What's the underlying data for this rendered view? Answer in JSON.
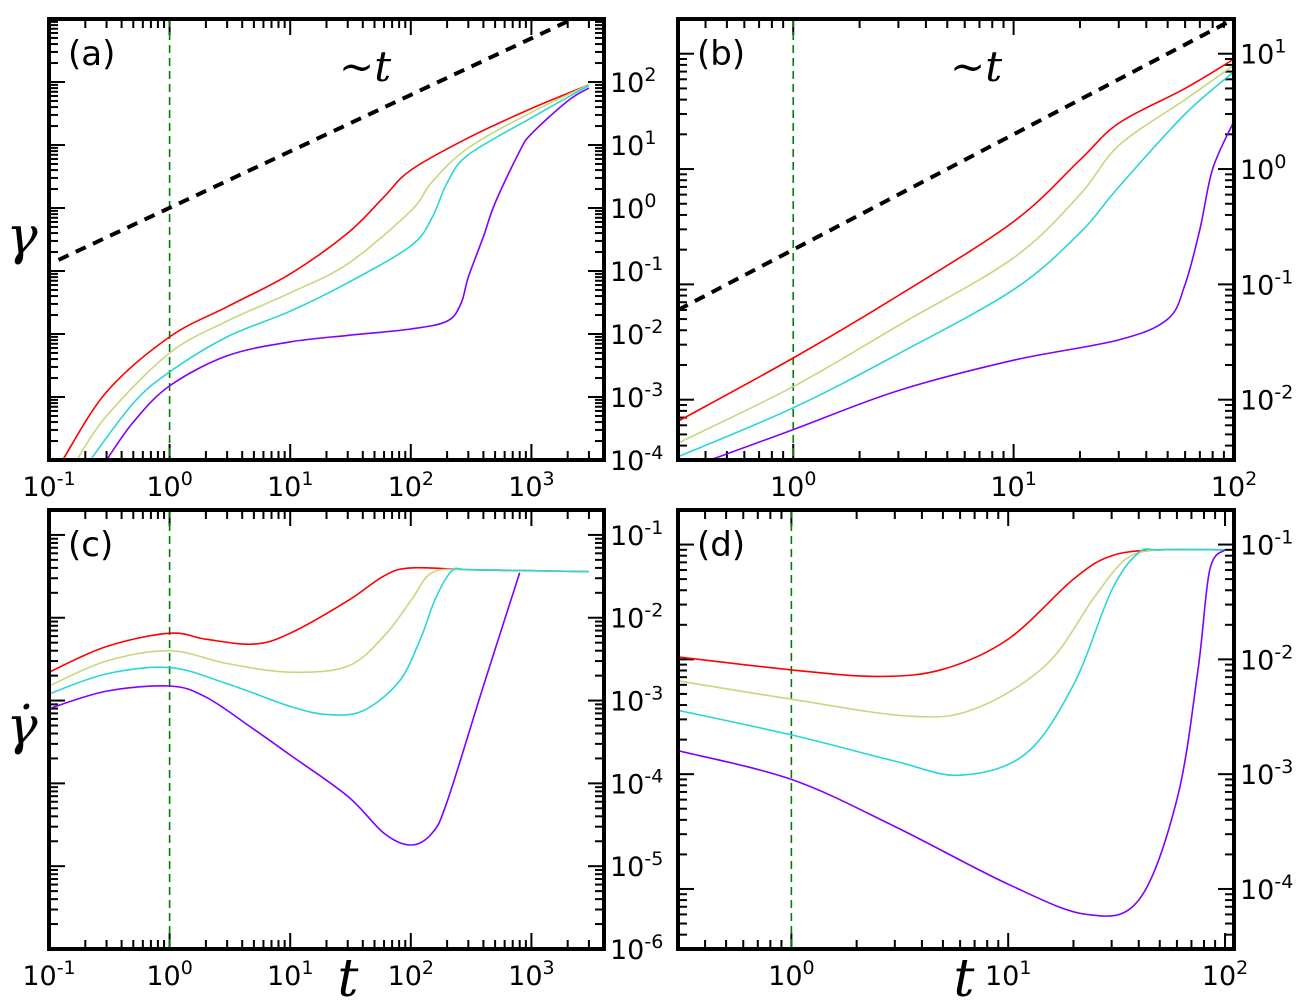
{
  "colors": {
    "series": [
      "#ff0000",
      "#c8d77e",
      "#2ad6d4",
      "#8000ff"
    ],
    "reference_line": "#000000",
    "vline": "#008000",
    "frame": "#000000"
  },
  "chart_data": [
    {
      "id": "a",
      "type": "line",
      "label": "(a)",
      "xscale": "log",
      "xlim": [
        0.1,
        4000
      ],
      "yscale": "log",
      "ylim": [
        0.0001,
        1000
      ],
      "x_tick_labels": [
        "10^-1",
        "10^0",
        "10^1",
        "10^2",
        "10^3"
      ],
      "y_tick_labels_right": [
        "10^-4",
        "10^-3",
        "10^-2",
        "10^-1",
        "10^0",
        "10^1",
        "10^2"
      ],
      "ylabel": "γ",
      "annotation": "~t",
      "vline_x": 1,
      "reference_line": {
        "label": "~t",
        "x": [
          0.12,
          2200
        ],
        "y": [
          0.15,
          1000
        ]
      },
      "series": [
        {
          "name": "red",
          "x": [
            0.13,
            0.3,
            1,
            3,
            10,
            30,
            60,
            100,
            300,
            1000,
            3000
          ],
          "y": [
            0.0001,
            0.0012,
            0.009,
            0.027,
            0.09,
            0.4,
            1.5,
            4,
            13,
            38,
            90
          ]
        },
        {
          "name": "yellow-green",
          "x": [
            0.17,
            0.3,
            1,
            3,
            10,
            30,
            100,
            150,
            300,
            1000,
            3000
          ],
          "y": [
            0.0001,
            0.0005,
            0.005,
            0.016,
            0.045,
            0.13,
            0.9,
            2.6,
            9,
            33,
            90
          ]
        },
        {
          "name": "cyan",
          "x": [
            0.22,
            0.5,
            1,
            3,
            10,
            30,
            100,
            150,
            200,
            300,
            1000,
            3000
          ],
          "y": [
            0.0001,
            0.0008,
            0.0025,
            0.009,
            0.023,
            0.065,
            0.25,
            0.7,
            2.5,
            7,
            27,
            88
          ]
        },
        {
          "name": "purple",
          "x": [
            0.3,
            0.5,
            1,
            3,
            10,
            30,
            100,
            200,
            260,
            300,
            400,
            500,
            800,
            1000,
            2000,
            3000
          ],
          "y": [
            0.0001,
            0.0004,
            0.0015,
            0.0045,
            0.0075,
            0.0095,
            0.012,
            0.016,
            0.03,
            0.08,
            0.35,
            1.2,
            8,
            15,
            50,
            80
          ]
        }
      ]
    },
    {
      "id": "b",
      "type": "line",
      "label": "(b)",
      "xscale": "log",
      "xlim": [
        0.3,
        100
      ],
      "yscale": "log",
      "ylim": [
        0.003,
        20
      ],
      "x_tick_labels": [
        "10^0",
        "10^1",
        "10^2"
      ],
      "y_tick_labels_right": [
        "10^-2",
        "10^-1",
        "10^0",
        "10^1"
      ],
      "annotation": "~t",
      "vline_x": 1,
      "reference_line": {
        "label": "~t",
        "x": [
          0.3,
          100
        ],
        "y": [
          0.06,
          20
        ]
      },
      "series": [
        {
          "name": "red",
          "x": [
            0.3,
            1,
            3,
            10,
            20,
            30,
            60,
            100
          ],
          "y": [
            0.0065,
            0.023,
            0.08,
            0.35,
            1.2,
            2.5,
            5,
            9
          ]
        },
        {
          "name": "yellow-green",
          "x": [
            0.3,
            1,
            3,
            10,
            20,
            30,
            60,
            100
          ],
          "y": [
            0.0042,
            0.013,
            0.044,
            0.17,
            0.6,
            1.6,
            4,
            8
          ]
        },
        {
          "name": "cyan",
          "x": [
            0.3,
            1,
            3,
            10,
            20,
            30,
            60,
            100
          ],
          "y": [
            0.0032,
            0.0085,
            0.025,
            0.09,
            0.28,
            0.7,
            3,
            7
          ]
        },
        {
          "name": "purple",
          "x": [
            0.42,
            1,
            3,
            10,
            30,
            50,
            60,
            70,
            80,
            100
          ],
          "y": [
            0.003,
            0.0055,
            0.012,
            0.022,
            0.033,
            0.05,
            0.1,
            0.3,
            1,
            2.6
          ]
        }
      ]
    },
    {
      "id": "c",
      "type": "line",
      "label": "(c)",
      "xscale": "log",
      "xlim": [
        0.1,
        4000
      ],
      "yscale": "log",
      "ylim": [
        1e-06,
        0.2
      ],
      "x_tick_labels": [
        "10^-1",
        "10^0",
        "10^1",
        "10^2",
        "10^3"
      ],
      "y_tick_labels_right": [
        "10^-6",
        "10^-5",
        "10^-4",
        "10^-3",
        "10^-2",
        "10^-1"
      ],
      "xlabel": "t",
      "ylabel": "γ̇",
      "vline_x": 1,
      "series": [
        {
          "name": "red",
          "x": [
            0.1,
            0.3,
            1,
            2,
            5,
            10,
            30,
            60,
            100,
            300,
            1000,
            3000
          ],
          "y": [
            0.0022,
            0.0045,
            0.0065,
            0.0055,
            0.0048,
            0.0065,
            0.016,
            0.032,
            0.04,
            0.038,
            0.037,
            0.036
          ]
        },
        {
          "name": "yellow-green",
          "x": [
            0.1,
            0.3,
            1,
            3,
            10,
            30,
            60,
            100,
            150,
            300,
            1000,
            3000
          ],
          "y": [
            0.0015,
            0.003,
            0.004,
            0.0028,
            0.0022,
            0.0026,
            0.006,
            0.016,
            0.035,
            0.038,
            0.037,
            0.036
          ]
        },
        {
          "name": "cyan",
          "x": [
            0.1,
            0.3,
            1,
            3,
            10,
            20,
            40,
            80,
            120,
            160,
            220,
            300,
            1000,
            3000
          ],
          "y": [
            0.0012,
            0.0021,
            0.0025,
            0.0016,
            0.00085,
            0.00068,
            0.00075,
            0.0017,
            0.0055,
            0.017,
            0.037,
            0.038,
            0.037,
            0.036
          ]
        },
        {
          "name": "purple",
          "x": [
            0.1,
            0.3,
            1,
            2,
            5,
            10,
            30,
            60,
            100,
            150,
            200,
            400,
            800
          ],
          "y": [
            0.0008,
            0.0013,
            0.0015,
            0.0011,
            0.00045,
            0.00022,
            7e-05,
            2.5e-05,
            1.8e-05,
            2.5e-05,
            6e-05,
            0.0015,
            0.035
          ]
        }
      ]
    },
    {
      "id": "d",
      "type": "line",
      "label": "(d)",
      "xscale": "log",
      "xlim": [
        0.3,
        110
      ],
      "yscale": "log",
      "ylim": [
        3e-05,
        0.2
      ],
      "x_tick_labels": [
        "10^0",
        "10^1",
        "10^2"
      ],
      "y_tick_labels_right": [
        "10^-4",
        "10^-3",
        "10^-2",
        "10^-1"
      ],
      "xlabel": "t",
      "vline_x": 1,
      "series": [
        {
          "name": "red",
          "x": [
            0.3,
            1,
            2.5,
            5,
            10,
            20,
            30,
            50,
            100
          ],
          "y": [
            0.0105,
            0.0081,
            0.0071,
            0.0082,
            0.015,
            0.05,
            0.08,
            0.09,
            0.09
          ]
        },
        {
          "name": "yellow-green",
          "x": [
            0.3,
            1,
            3.5,
            7,
            15,
            25,
            35,
            50,
            100
          ],
          "y": [
            0.0065,
            0.0045,
            0.0032,
            0.0037,
            0.009,
            0.035,
            0.075,
            0.09,
            0.09
          ]
        },
        {
          "name": "cyan",
          "x": [
            0.3,
            1,
            3,
            6,
            12,
            20,
            30,
            40,
            50,
            100
          ],
          "y": [
            0.0036,
            0.0022,
            0.0013,
            0.00098,
            0.0015,
            0.006,
            0.04,
            0.085,
            0.09,
            0.09
          ]
        },
        {
          "name": "purple",
          "x": [
            0.3,
            1,
            3,
            10,
            23,
            40,
            60,
            75,
            85,
            100
          ],
          "y": [
            0.0016,
            0.0009,
            0.00035,
            0.00011,
            6e-05,
            8e-05,
            0.0006,
            0.008,
            0.06,
            0.09
          ]
        }
      ]
    }
  ]
}
